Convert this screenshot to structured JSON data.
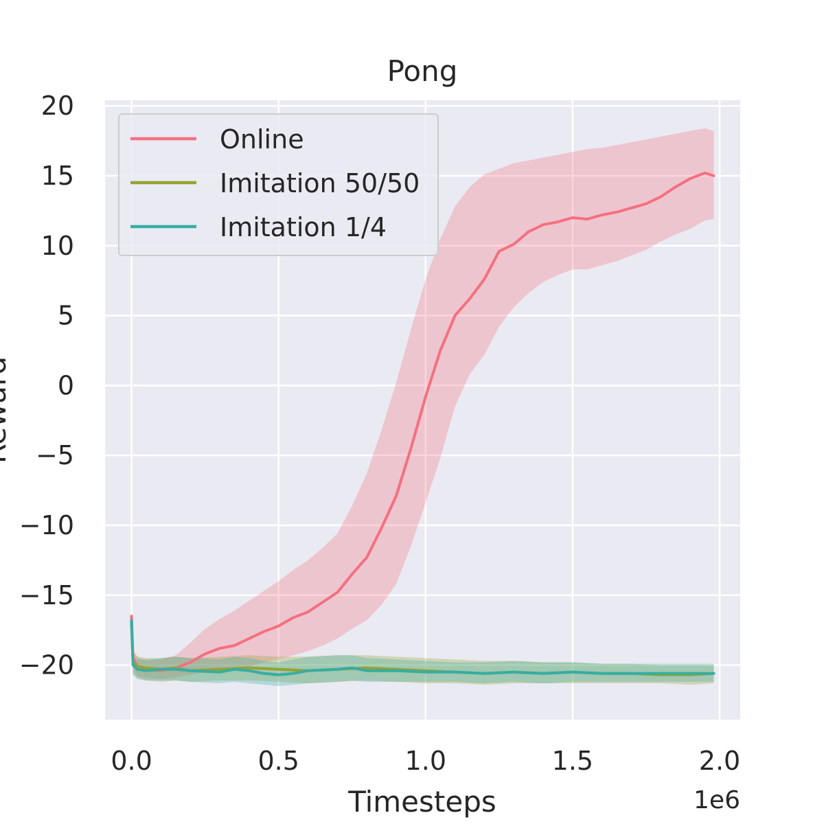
{
  "chart_data": {
    "type": "line",
    "title": "Pong",
    "xlabel": "Timesteps",
    "ylabel": "Reward",
    "x_offset_label": "1e6",
    "xlim": [
      -0.09,
      2.07
    ],
    "ylim": [
      -23.9,
      20.4
    ],
    "xticks": [
      0.0,
      0.5,
      1.0,
      1.5,
      2.0
    ],
    "xtick_labels": [
      "0.0",
      "0.5",
      "1.0",
      "1.5",
      "2.0"
    ],
    "yticks": [
      -20,
      -15,
      -10,
      -5,
      0,
      5,
      10,
      15,
      20
    ],
    "ytick_labels": [
      "−20",
      "−15",
      "−10",
      "−5",
      "0",
      "5",
      "10",
      "15",
      "20"
    ],
    "grid": true,
    "legend_position": "top-left",
    "series": [
      {
        "name": "Online",
        "color": "#f5707f",
        "x": [
          0.0,
          0.005,
          0.02,
          0.05,
          0.1,
          0.15,
          0.2,
          0.25,
          0.3,
          0.35,
          0.4,
          0.45,
          0.5,
          0.55,
          0.6,
          0.65,
          0.7,
          0.75,
          0.8,
          0.85,
          0.9,
          0.95,
          1.0,
          1.05,
          1.1,
          1.15,
          1.2,
          1.25,
          1.3,
          1.35,
          1.4,
          1.45,
          1.5,
          1.55,
          1.6,
          1.65,
          1.7,
          1.75,
          1.8,
          1.85,
          1.9,
          1.95,
          1.98
        ],
        "y": [
          -16.5,
          -19.5,
          -20.1,
          -20.3,
          -20.4,
          -20.2,
          -19.8,
          -19.2,
          -18.8,
          -18.6,
          -18.1,
          -17.6,
          -17.2,
          -16.6,
          -16.2,
          -15.5,
          -14.8,
          -13.5,
          -12.3,
          -10.2,
          -7.9,
          -4.5,
          -0.8,
          2.5,
          5.0,
          6.2,
          7.6,
          9.6,
          10.1,
          11.0,
          11.5,
          11.7,
          12.0,
          11.9,
          12.2,
          12.4,
          12.7,
          13.0,
          13.5,
          14.2,
          14.8,
          15.2,
          15.0
        ],
        "band_upper": [
          -16.0,
          -18.9,
          -19.4,
          -19.7,
          -19.6,
          -19.3,
          -18.4,
          -17.4,
          -16.7,
          -16.1,
          -15.4,
          -14.7,
          -14.0,
          -13.2,
          -12.5,
          -11.6,
          -10.6,
          -8.6,
          -6.3,
          -3.2,
          0.2,
          4.0,
          7.6,
          10.5,
          12.8,
          14.2,
          15.1,
          15.5,
          15.9,
          16.1,
          16.3,
          16.5,
          16.7,
          16.9,
          17.0,
          17.2,
          17.4,
          17.6,
          17.8,
          18.0,
          18.2,
          18.4,
          18.2
        ],
        "band_lower": [
          -17.0,
          -20.1,
          -20.8,
          -20.9,
          -21.0,
          -20.9,
          -20.7,
          -20.5,
          -20.4,
          -20.3,
          -20.1,
          -19.8,
          -19.6,
          -19.3,
          -19.0,
          -18.6,
          -18.1,
          -17.4,
          -16.8,
          -15.7,
          -14.2,
          -11.5,
          -8.4,
          -5.2,
          -1.5,
          0.8,
          2.2,
          4.2,
          5.6,
          6.6,
          7.4,
          7.9,
          8.3,
          8.3,
          8.6,
          8.9,
          9.3,
          9.7,
          10.3,
          10.8,
          11.2,
          11.8,
          11.9
        ]
      },
      {
        "name": "Imitation 50/50",
        "color": "#96a330",
        "x": [
          0.0,
          0.005,
          0.02,
          0.05,
          0.1,
          0.15,
          0.2,
          0.3,
          0.4,
          0.5,
          0.6,
          0.7,
          0.8,
          0.9,
          1.0,
          1.1,
          1.2,
          1.3,
          1.4,
          1.5,
          1.6,
          1.7,
          1.8,
          1.9,
          1.98
        ],
        "y": [
          -17.0,
          -19.8,
          -20.1,
          -20.2,
          -20.3,
          -20.2,
          -20.4,
          -20.3,
          -20.2,
          -20.3,
          -20.4,
          -20.3,
          -20.2,
          -20.3,
          -20.4,
          -20.5,
          -20.6,
          -20.5,
          -20.6,
          -20.5,
          -20.6,
          -20.6,
          -20.7,
          -20.7,
          -20.6
        ],
        "band_upper": [
          -16.6,
          -19.1,
          -19.4,
          -19.5,
          -19.5,
          -19.4,
          -19.5,
          -19.4,
          -19.3,
          -19.4,
          -19.4,
          -19.3,
          -19.3,
          -19.4,
          -19.5,
          -19.6,
          -19.7,
          -19.7,
          -19.8,
          -19.8,
          -19.9,
          -19.9,
          -20.0,
          -20.0,
          -20.0
        ],
        "band_lower": [
          -17.4,
          -20.6,
          -20.9,
          -21.1,
          -21.2,
          -21.1,
          -21.2,
          -21.1,
          -21.1,
          -21.2,
          -21.3,
          -21.2,
          -21.1,
          -21.2,
          -21.3,
          -21.3,
          -21.4,
          -21.3,
          -21.3,
          -21.3,
          -21.3,
          -21.3,
          -21.3,
          -21.4,
          -21.3
        ]
      },
      {
        "name": "Imitation 1/4",
        "color": "#36ada4",
        "x": [
          0.0,
          0.005,
          0.02,
          0.05,
          0.1,
          0.15,
          0.2,
          0.3,
          0.35,
          0.4,
          0.45,
          0.5,
          0.55,
          0.6,
          0.7,
          0.75,
          0.8,
          0.9,
          1.0,
          1.1,
          1.2,
          1.3,
          1.4,
          1.5,
          1.6,
          1.7,
          1.8,
          1.9,
          1.98
        ],
        "y": [
          -16.8,
          -20.0,
          -20.3,
          -20.4,
          -20.3,
          -20.3,
          -20.4,
          -20.5,
          -20.3,
          -20.4,
          -20.6,
          -20.7,
          -20.6,
          -20.4,
          -20.3,
          -20.2,
          -20.4,
          -20.4,
          -20.5,
          -20.5,
          -20.6,
          -20.5,
          -20.6,
          -20.5,
          -20.6,
          -20.6,
          -20.6,
          -20.6,
          -20.6
        ],
        "band_upper": [
          -16.4,
          -19.4,
          -19.6,
          -19.6,
          -19.5,
          -19.4,
          -19.5,
          -19.6,
          -19.4,
          -19.5,
          -19.7,
          -19.8,
          -19.6,
          -19.4,
          -19.3,
          -19.3,
          -19.5,
          -19.6,
          -19.7,
          -19.8,
          -19.8,
          -19.7,
          -19.8,
          -19.8,
          -19.9,
          -19.9,
          -19.9,
          -19.9,
          -19.9
        ],
        "band_lower": [
          -17.2,
          -20.7,
          -21.0,
          -21.1,
          -21.1,
          -21.1,
          -21.2,
          -21.3,
          -21.2,
          -21.3,
          -21.4,
          -21.5,
          -21.4,
          -21.3,
          -21.2,
          -21.1,
          -21.2,
          -21.2,
          -21.2,
          -21.2,
          -21.3,
          -21.2,
          -21.3,
          -21.2,
          -21.2,
          -21.2,
          -21.2,
          -21.2,
          -21.2
        ]
      }
    ]
  }
}
